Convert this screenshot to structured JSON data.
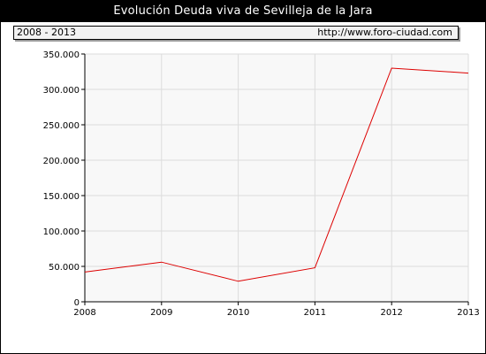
{
  "header": {
    "title": "Evolución Deuda viva de Sevilleja de la Jara",
    "period": "2008 - 2013",
    "url": "http://www.foro-ciudad.com"
  },
  "chart_data": {
    "type": "line",
    "title": "Evolución Deuda viva de Sevilleja de la Jara",
    "x": [
      2008,
      2009,
      2010,
      2011,
      2012,
      2013
    ],
    "x_tick_labels": [
      "2008",
      "2009",
      "2010",
      "2011",
      "2012",
      "2013"
    ],
    "series": [
      {
        "values": [
          42000,
          56000,
          29000,
          48000,
          330000,
          323000
        ]
      }
    ],
    "ylim": [
      0,
      350000
    ],
    "y_ticks": [
      0,
      50000,
      100000,
      150000,
      200000,
      250000,
      300000,
      350000
    ],
    "y_tick_labels": [
      "0",
      "50.000",
      "100.000",
      "150.000",
      "200.000",
      "250.000",
      "300.000",
      "350.000"
    ],
    "grid": true,
    "line_color": "#dd0000",
    "plot_background": "#f8f8f8"
  }
}
